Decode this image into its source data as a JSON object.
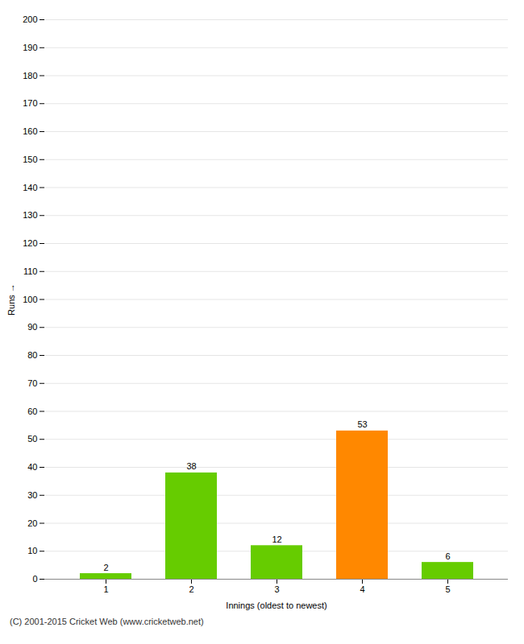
{
  "chart_data": {
    "type": "bar",
    "categories": [
      1,
      2,
      3,
      4,
      5
    ],
    "values": [
      2,
      38,
      12,
      53,
      6
    ],
    "colors": [
      "#66cc00",
      "#66cc00",
      "#66cc00",
      "#ff8800",
      "#66cc00"
    ],
    "xlabel": "Innings (oldest to newest)",
    "ylabel": "Runs",
    "ylim": [
      0,
      200
    ],
    "yticks": [
      0,
      10,
      20,
      30,
      40,
      50,
      60,
      70,
      80,
      90,
      100,
      110,
      120,
      130,
      140,
      150,
      160,
      170,
      180,
      190,
      200
    ],
    "grid": true,
    "data_labels": true,
    "annotations": [
      "(C) 2001-2015 Cricket Web (www.cricketweb.net)"
    ]
  }
}
